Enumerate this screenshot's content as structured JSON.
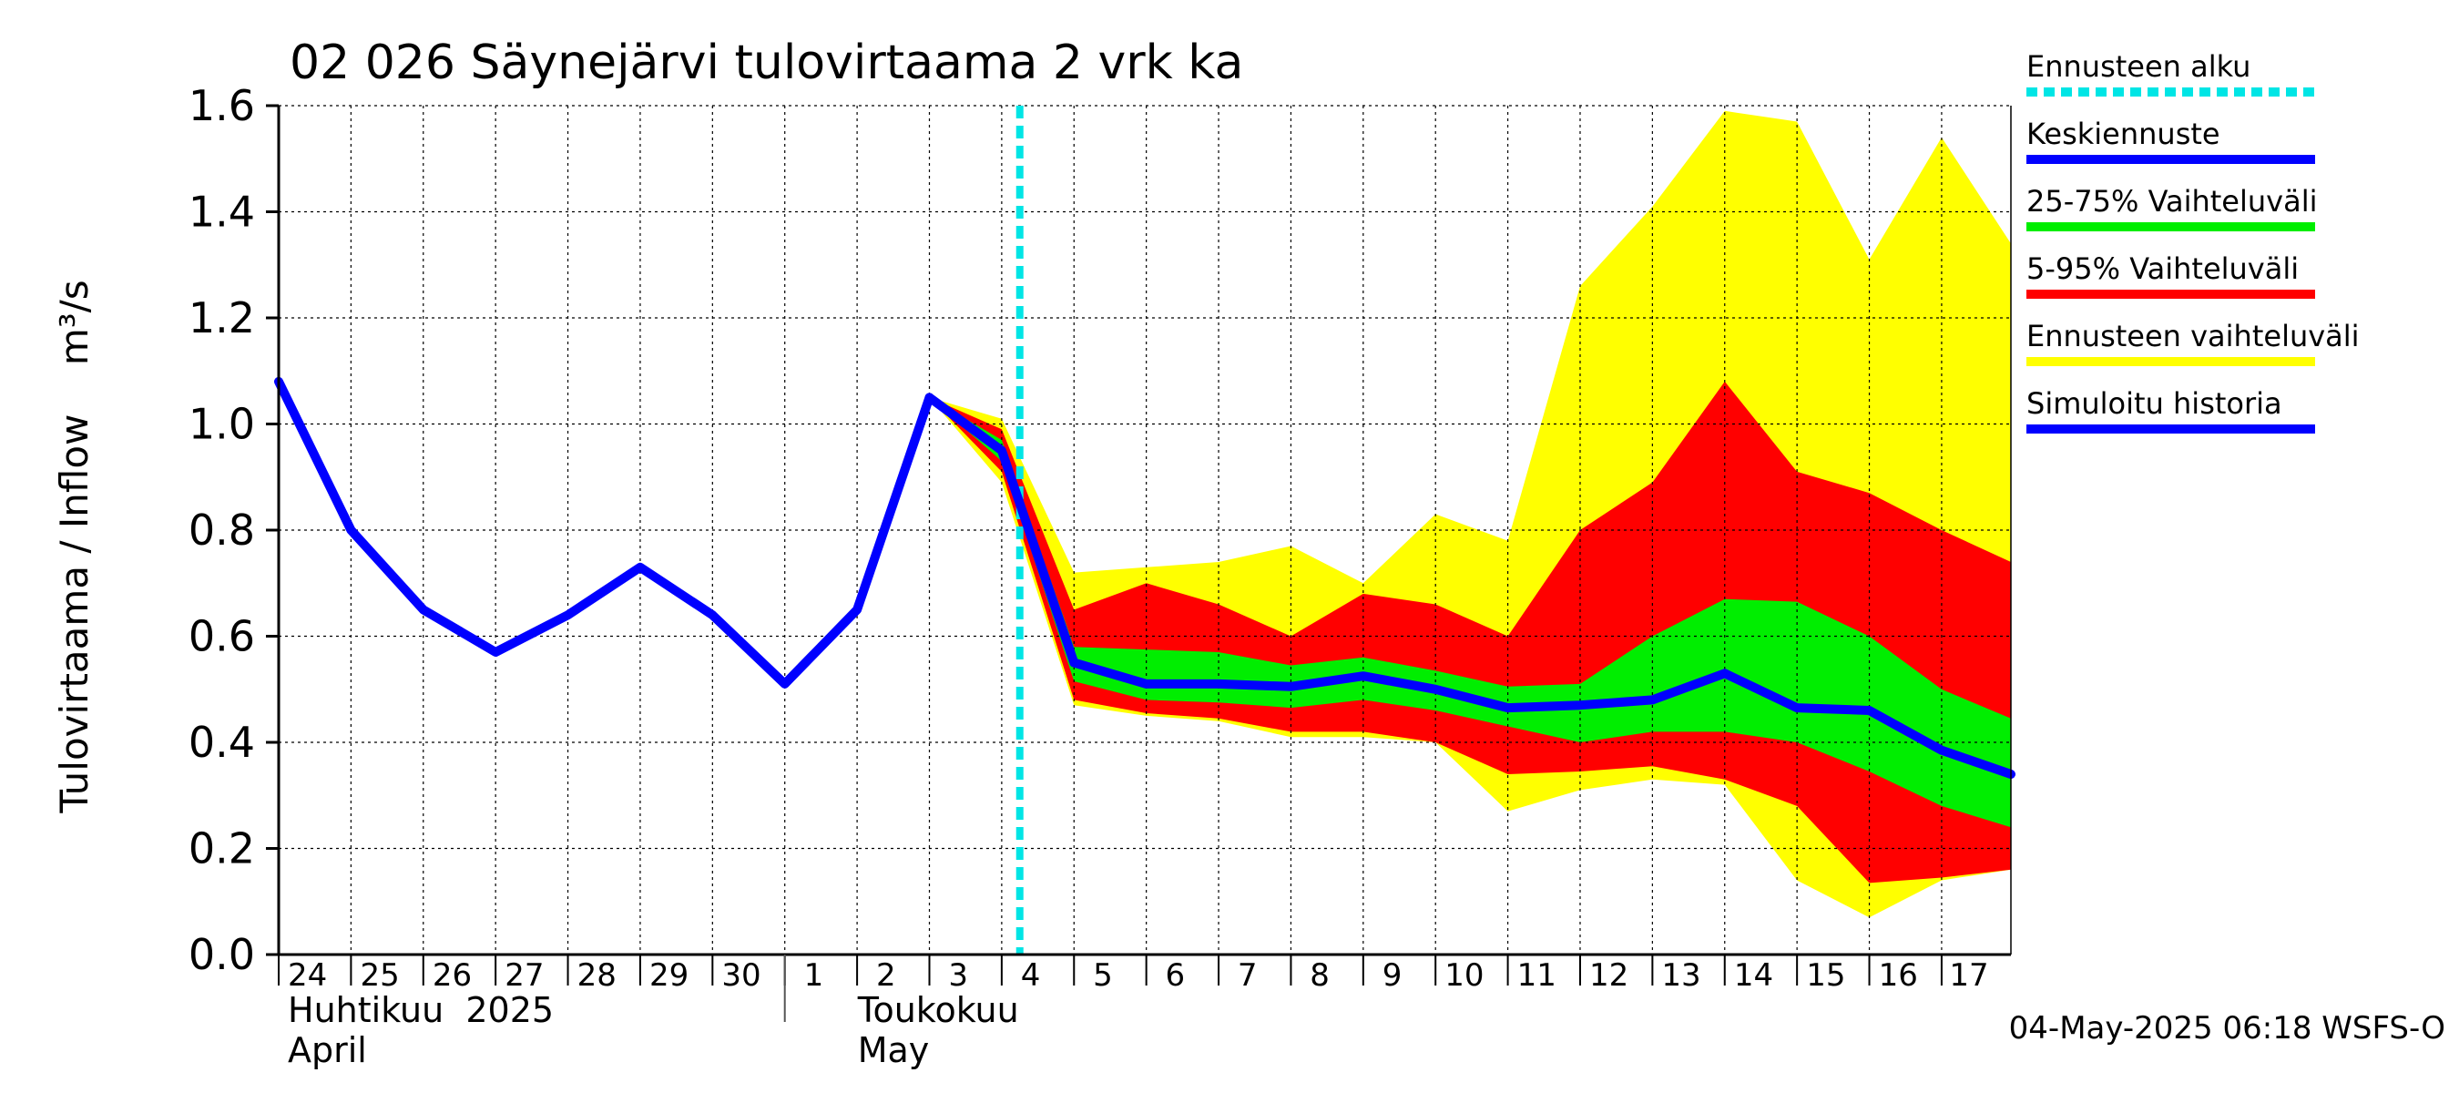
{
  "chart_data": {
    "type": "area",
    "title": "02 026 Säynejärvi tulovirtaama 2 vrk ka",
    "ylabel": "Tulovirtaama / Inflow    m³/s",
    "ylim": [
      0,
      1.6
    ],
    "xlim": [
      "2025-04-24",
      "2025-05-17T23:00"
    ],
    "y_ticks": [
      "0.0",
      "0.2",
      "0.4",
      "0.6",
      "0.8",
      "1.0",
      "1.2",
      "1.4",
      "1.6"
    ],
    "x_tick_labels": [
      "24",
      "25",
      "26",
      "27",
      "28",
      "29",
      "30",
      "1",
      "2",
      "3",
      "4",
      "5",
      "6",
      "7",
      "8",
      "9",
      "10",
      "11",
      "12",
      "13",
      "14",
      "15",
      "16",
      "17"
    ],
    "month_labels": [
      {
        "fi": "Huhtikuu  2025",
        "en": "April",
        "start": "2025-04-24"
      },
      {
        "fi": "Toukokuu",
        "en": "May",
        "start": "2025-05-01"
      }
    ],
    "grid": true,
    "legend_position": "right",
    "forecast_start": "2025-05-04T06:00",
    "timestamp": "04-May-2025 06:18 WSFS-O",
    "legend": [
      {
        "label": "Ennusteen alku",
        "color": "#00e5e5",
        "style": "dashed"
      },
      {
        "label": "Keskiennuste",
        "color": "#0000ff",
        "style": "solid"
      },
      {
        "label": "25-75% Vaihteluväli",
        "color": "#00ee00",
        "style": "solid"
      },
      {
        "label": "5-95% Vaihteluväli",
        "color": "#ff0000",
        "style": "solid"
      },
      {
        "label": "Ennusteen vaihteluväli",
        "color": "#ffff00",
        "style": "solid"
      },
      {
        "label": "Simuloitu historia",
        "color": "#0000ff",
        "style": "solid"
      }
    ],
    "x": [
      "2025-04-24",
      "2025-04-25",
      "2025-04-26",
      "2025-04-27",
      "2025-04-28",
      "2025-04-29",
      "2025-04-30",
      "2025-05-01",
      "2025-05-02",
      "2025-05-03",
      "2025-05-04",
      "2025-05-05",
      "2025-05-06",
      "2025-05-07",
      "2025-05-08",
      "2025-05-09",
      "2025-05-10",
      "2025-05-11",
      "2025-05-12",
      "2025-05-13",
      "2025-05-14",
      "2025-05-15",
      "2025-05-16",
      "2025-05-17",
      "2025-05-17T23:00"
    ],
    "series": [
      {
        "name": "Simuloitu historia",
        "color": "#0000ff",
        "x": [
          "2025-04-24",
          "2025-04-25",
          "2025-04-26",
          "2025-04-27",
          "2025-04-28",
          "2025-04-29",
          "2025-04-30",
          "2025-05-01",
          "2025-05-02",
          "2025-05-03"
        ],
        "values": [
          1.08,
          0.8,
          0.65,
          0.57,
          0.64,
          0.73,
          0.64,
          0.51,
          0.65,
          1.05
        ]
      },
      {
        "name": "Keskiennuste",
        "color": "#0000ff",
        "x": [
          "2025-05-03",
          "2025-05-04",
          "2025-05-05",
          "2025-05-06",
          "2025-05-07",
          "2025-05-08",
          "2025-05-09",
          "2025-05-10",
          "2025-05-11",
          "2025-05-12",
          "2025-05-13",
          "2025-05-14",
          "2025-05-15",
          "2025-05-16",
          "2025-05-17",
          "2025-05-17T23:00"
        ],
        "values": [
          1.05,
          0.95,
          0.55,
          0.51,
          0.51,
          0.505,
          0.525,
          0.5,
          0.465,
          0.47,
          0.48,
          0.53,
          0.465,
          0.46,
          0.385,
          0.34
        ]
      },
      {
        "name": "Ennusteen vaihteluväli",
        "color": "#ffff00",
        "x": [
          "2025-05-03",
          "2025-05-04",
          "2025-05-05",
          "2025-05-06",
          "2025-05-07",
          "2025-05-08",
          "2025-05-09",
          "2025-05-10",
          "2025-05-11",
          "2025-05-12",
          "2025-05-13",
          "2025-05-14",
          "2025-05-15",
          "2025-05-16",
          "2025-05-17",
          "2025-05-17T23:00"
        ],
        "upper": [
          1.05,
          1.01,
          0.72,
          0.73,
          0.74,
          0.77,
          0.7,
          0.83,
          0.78,
          1.26,
          1.41,
          1.59,
          1.57,
          1.31,
          1.54,
          1.34
        ],
        "lower": [
          1.05,
          0.89,
          0.47,
          0.45,
          0.44,
          0.41,
          0.41,
          0.4,
          0.27,
          0.31,
          0.33,
          0.32,
          0.14,
          0.07,
          0.14,
          0.16
        ]
      },
      {
        "name": "5-95% Vaihteluväli",
        "color": "#ff0000",
        "x": [
          "2025-05-03",
          "2025-05-04",
          "2025-05-05",
          "2025-05-06",
          "2025-05-07",
          "2025-05-08",
          "2025-05-09",
          "2025-05-10",
          "2025-05-11",
          "2025-05-12",
          "2025-05-13",
          "2025-05-14",
          "2025-05-15",
          "2025-05-16",
          "2025-05-17",
          "2025-05-17T23:00"
        ],
        "upper": [
          1.05,
          0.99,
          0.65,
          0.7,
          0.66,
          0.6,
          0.68,
          0.66,
          0.6,
          0.8,
          0.89,
          1.08,
          0.91,
          0.87,
          0.8,
          0.74
        ],
        "lower": [
          1.05,
          0.91,
          0.48,
          0.455,
          0.445,
          0.42,
          0.42,
          0.4,
          0.34,
          0.345,
          0.355,
          0.33,
          0.28,
          0.135,
          0.145,
          0.16
        ]
      },
      {
        "name": "25-75% Vaihteluväli",
        "color": "#00ee00",
        "x": [
          "2025-05-03",
          "2025-05-04",
          "2025-05-05",
          "2025-05-06",
          "2025-05-07",
          "2025-05-08",
          "2025-05-09",
          "2025-05-10",
          "2025-05-11",
          "2025-05-12",
          "2025-05-13",
          "2025-05-14",
          "2025-05-15",
          "2025-05-16",
          "2025-05-17",
          "2025-05-17T23:00"
        ],
        "upper": [
          1.05,
          0.97,
          0.58,
          0.575,
          0.57,
          0.545,
          0.56,
          0.535,
          0.505,
          0.51,
          0.6,
          0.67,
          0.665,
          0.6,
          0.5,
          0.445
        ],
        "lower": [
          1.05,
          0.93,
          0.515,
          0.48,
          0.475,
          0.465,
          0.48,
          0.46,
          0.43,
          0.4,
          0.42,
          0.42,
          0.4,
          0.345,
          0.28,
          0.24
        ]
      }
    ]
  }
}
